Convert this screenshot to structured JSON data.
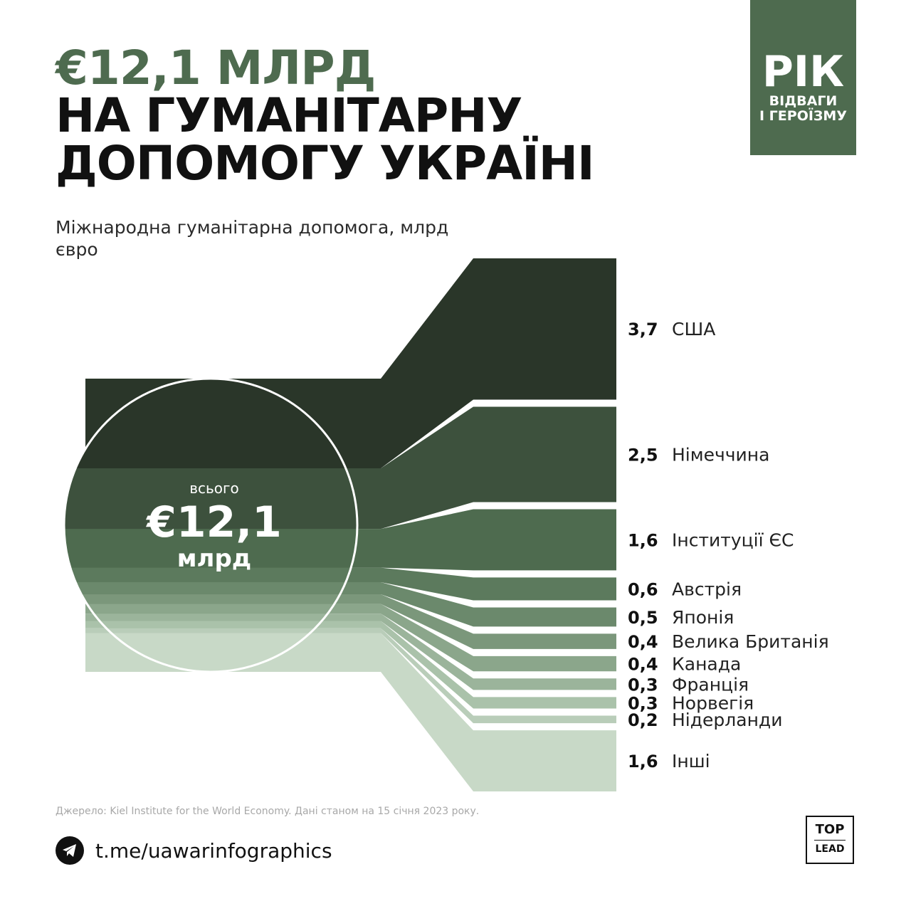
{
  "header": {
    "accent_line": "€12,1 МЛРД",
    "title_line_1": "НА ГУМАНІТАРНУ",
    "title_line_2": "ДОПОМОГУ УКРАЇНІ",
    "subtitle": "Міжнародна гуманітарна допомога, млрд євро"
  },
  "badge": {
    "big": "РІК",
    "line_1": "ВІДВАГИ",
    "line_2": "І ГЕРОЇЗМУ"
  },
  "chart_data": {
    "type": "sankey",
    "unit": "млрд євро",
    "total": {
      "label": "всього",
      "value_text": "€12,1",
      "unit_text": "млрд",
      "value": 12.1
    },
    "categories": [
      "США",
      "Німеччина",
      "Інституції ЄС",
      "Австрія",
      "Японія",
      "Велика Британія",
      "Канада",
      "Франція",
      "Норвегія",
      "Нідерланди",
      "Інші"
    ],
    "values": [
      3.7,
      2.5,
      1.6,
      0.6,
      0.5,
      0.4,
      0.4,
      0.3,
      0.3,
      0.2,
      1.6
    ],
    "value_labels": [
      "3,7",
      "2,5",
      "1,6",
      "0,6",
      "0,5",
      "0,4",
      "0,4",
      "0,3",
      "0,3",
      "0,2",
      "1,6"
    ],
    "colors": [
      "#2a3629",
      "#3d513d",
      "#4e6b4f",
      "#5c7a5d",
      "#6b896c",
      "#7b977b",
      "#8ba68b",
      "#9bb49b",
      "#aac2aa",
      "#b9cdb9",
      "#c8d9c7"
    ]
  },
  "footer": {
    "source": "Джерело: Kiel Institute for the World Economy. Дані станом на 15 січня 2023 року.",
    "link": "t.me/uawarinfographics",
    "logo_top": "TOP",
    "logo_bottom": "LEAD"
  },
  "icons": {
    "telegram": "telegram-icon"
  }
}
